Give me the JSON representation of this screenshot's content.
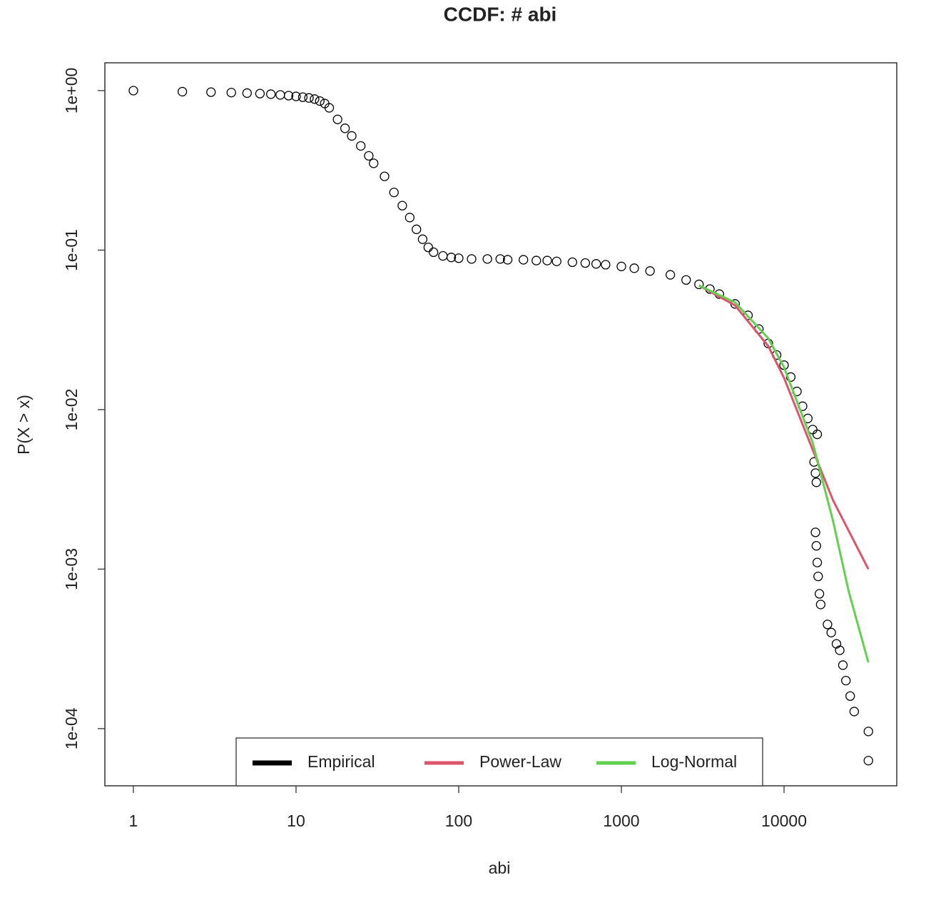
{
  "chart_data": {
    "type": "scatter",
    "title": "CCDF: # abi",
    "x_label": "abi",
    "y_label": "P(X > x)",
    "xlog": true,
    "ylog": true,
    "legend": "bottom",
    "xlim": [
      0.668,
      49300
    ],
    "ylim": [
      4.38e-05,
      1.494
    ],
    "xticks": [
      1,
      10,
      100,
      1000,
      10000
    ],
    "yticks": [
      {
        "value": 1,
        "label": "1e+00"
      },
      {
        "value": 0.1,
        "label": "1e-01"
      },
      {
        "value": 0.01,
        "label": "1e-02"
      },
      {
        "value": 0.001,
        "label": "1e-03"
      },
      {
        "value": 0.0001,
        "label": "1e-04"
      }
    ],
    "series": [
      {
        "name": "Empirical",
        "color": "#000000",
        "mode": "markers",
        "x": [
          1,
          2,
          3,
          4,
          5,
          6,
          7,
          8,
          9,
          10,
          11,
          12,
          13,
          14,
          15,
          16,
          18,
          20,
          22,
          25,
          28,
          30,
          35,
          40,
          45,
          50,
          55,
          60,
          65,
          70,
          80,
          90,
          100,
          120,
          150,
          180,
          200,
          250,
          300,
          350,
          400,
          500,
          600,
          700,
          800,
          1000,
          1200,
          1500,
          2000,
          2500,
          3000,
          3500,
          4000,
          5000,
          6000,
          7000,
          8000,
          9000,
          10000,
          11000,
          12000,
          13000,
          14000,
          15000,
          16000,
          15300,
          15600,
          15800,
          15600,
          15800,
          16000,
          16200,
          16500,
          16800,
          18500,
          19500,
          21000,
          22000,
          23000,
          24000,
          25500,
          27000,
          33000,
          33000
        ],
        "values": [
          1.0,
          0.985,
          0.978,
          0.972,
          0.965,
          0.958,
          0.95,
          0.94,
          0.93,
          0.92,
          0.91,
          0.9,
          0.885,
          0.86,
          0.83,
          0.78,
          0.66,
          0.58,
          0.52,
          0.45,
          0.39,
          0.35,
          0.29,
          0.23,
          0.19,
          0.16,
          0.135,
          0.117,
          0.104,
          0.097,
          0.092,
          0.09,
          0.089,
          0.088,
          0.088,
          0.088,
          0.087,
          0.087,
          0.086,
          0.086,
          0.085,
          0.084,
          0.083,
          0.082,
          0.081,
          0.079,
          0.077,
          0.074,
          0.07,
          0.065,
          0.061,
          0.057,
          0.053,
          0.046,
          0.039,
          0.032,
          0.026,
          0.022,
          0.019,
          0.016,
          0.013,
          0.0105,
          0.0088,
          0.0075,
          0.007,
          0.0047,
          0.004,
          0.0035,
          0.0017,
          0.0014,
          0.0011,
          0.0009,
          0.0007,
          0.0006,
          0.00045,
          0.0004,
          0.00034,
          0.00031,
          0.00025,
          0.0002,
          0.00016,
          0.000128,
          9.6e-05,
          6.3e-05
        ]
      },
      {
        "name": "Power-Law",
        "color": "#DF536B",
        "mode": "lines",
        "x": [
          3000,
          5000,
          8000,
          10000,
          15000,
          20000,
          33000
        ],
        "values": [
          0.06,
          0.045,
          0.025,
          0.0158,
          0.0056,
          0.0027,
          0.001
        ]
      },
      {
        "name": "Log-Normal",
        "color": "#61D04F",
        "mode": "lines",
        "x": [
          3000,
          5000,
          8000,
          10000,
          15000,
          20000,
          25000,
          33000
        ],
        "values": [
          0.06,
          0.047,
          0.028,
          0.0184,
          0.0062,
          0.002,
          0.00072,
          0.00026
        ]
      }
    ]
  }
}
